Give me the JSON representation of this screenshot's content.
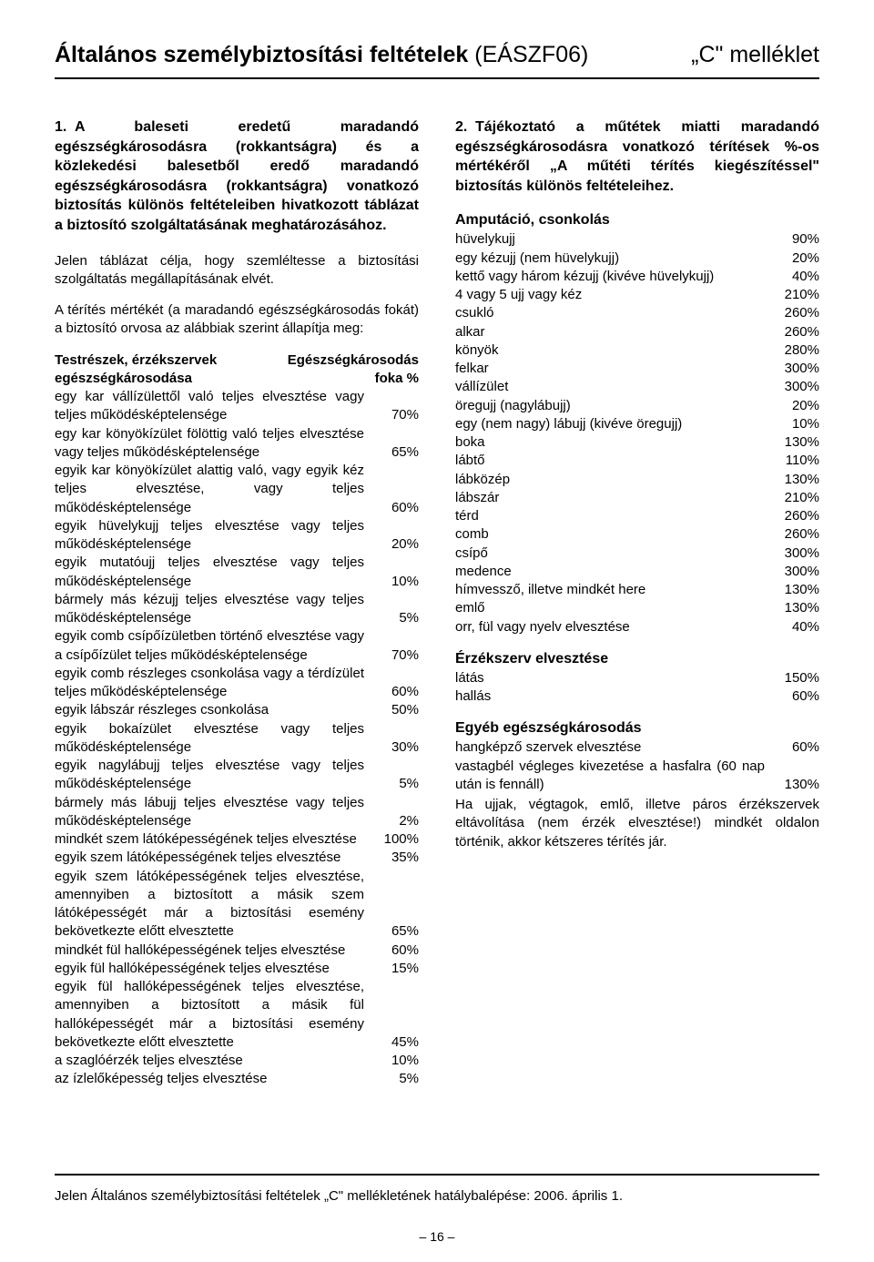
{
  "title": {
    "bold": "Általános személybiztosítási feltételek",
    "code": "(EÁSZF06)",
    "appendix": "„C\" melléklet"
  },
  "section1": {
    "num": "1.",
    "head": "A baleseti eredetű maradandó egészségkárosodásra (rokkantságra) és a közlekedési balesetből eredő maradandó egészségkárosodásra (rokkantságra) vonatkozó biztosítás különös feltételeiben hivatkozott táblázat a biztosító szolgáltatásának meghatározásához.",
    "p1": "Jelen táblázat célja, hogy szemléltesse a biztosítási szolgáltatás megállapításának elvét.",
    "p2": "A térítés mértékét (a maradandó egészségkárosodás fokát) a biztosító orvosa az alábbiak szerint állapítja meg:"
  },
  "table1_head": {
    "left1": "Testrészek, érzékszervek",
    "left2": "egészségkárosodása",
    "right1": "Egészségkárosodás",
    "right2": "foka %"
  },
  "table1": [
    {
      "label": "egy kar vállízülettől való teljes elvesztése vagy teljes működésképtelensége",
      "value": "70%"
    },
    {
      "label": "egy kar könyökízület fölöttig való teljes elvesztése vagy teljes működésképtelensége",
      "value": "65%"
    },
    {
      "label": "egyik kar könyökízület alattig való, vagy egyik kéz teljes elvesztése, vagy teljes működésképtelensége",
      "value": "60%"
    },
    {
      "label": "egyik hüvelykujj teljes elvesztése vagy teljes működésképtelensége",
      "value": "20%"
    },
    {
      "label": "egyik mutatóujj teljes elvesztése vagy teljes működésképtelensége",
      "value": "10%"
    },
    {
      "label": "bármely más kézujj teljes elvesztése vagy teljes működésképtelensége",
      "value": "5%"
    },
    {
      "label": "egyik comb csípőízületben történő elvesztése vagy a csípőízület teljes működésképtelensége",
      "value": "70%"
    },
    {
      "label": "egyik comb részleges csonkolása vagy a térdízület teljes működésképtelensége",
      "value": "60%"
    },
    {
      "label": "egyik lábszár részleges csonkolása",
      "value": "50%"
    },
    {
      "label": "egyik bokaízület elvesztése vagy teljes működésképtelensége",
      "value": "30%"
    },
    {
      "label": "egyik nagylábujj teljes elvesztése vagy teljes működésképtelensége",
      "value": "5%"
    },
    {
      "label": "bármely más lábujj teljes elvesztése vagy teljes működésképtelensége",
      "value": "2%"
    },
    {
      "label": "mindkét szem látóképességének teljes elvesztése",
      "value": "100%"
    },
    {
      "label": "egyik szem látóképességének teljes elvesztése",
      "value": "35%"
    },
    {
      "label": "egyik szem látóképességének teljes elvesztése, amennyiben a biztosított a másik szem látóképességét már a biztosítási esemény bekövetkezte előtt elvesztette",
      "value": "65%"
    },
    {
      "label": "mindkét fül hallóképességének teljes elvesztése",
      "value": "60%"
    },
    {
      "label": "egyik fül hallóképességének teljes elvesztése",
      "value": "15%"
    },
    {
      "label": "egyik fül hallóképességének teljes elvesztése, amennyiben a biztosított a másik fül hallóképességét már a biztosítási esemény bekövetkezte előtt elvesztette",
      "value": "45%"
    },
    {
      "label": "a szaglóérzék teljes elvesztése",
      "value": "10%"
    },
    {
      "label": "az ízlelőképesség teljes elvesztése",
      "value": "5%"
    }
  ],
  "section2": {
    "num": "2.",
    "head": "Tájékoztató a műtétek miatti maradandó egészségkárosodásra vonatkozó térítések %-os mértékéről „A műtéti térítés kiegészítéssel\" biztosítás különös feltételeihez."
  },
  "amput_head": "Amputáció, csonkolás",
  "amput": [
    {
      "label": "hüvelykujj",
      "value": "90%"
    },
    {
      "label": "egy kézujj (nem hüvelykujj)",
      "value": "20%"
    },
    {
      "label": "kettő vagy három kézujj (kivéve hüvelykujj)",
      "value": "40%"
    },
    {
      "label": "4 vagy 5 ujj vagy kéz",
      "value": "210%"
    },
    {
      "label": "csukló",
      "value": "260%"
    },
    {
      "label": "alkar",
      "value": "260%"
    },
    {
      "label": "könyök",
      "value": "280%"
    },
    {
      "label": "felkar",
      "value": "300%"
    },
    {
      "label": "vállízület",
      "value": "300%"
    },
    {
      "label": "öregujj (nagylábujj)",
      "value": "20%"
    },
    {
      "label": "egy (nem nagy) lábujj (kivéve öregujj)",
      "value": "10%"
    },
    {
      "label": "boka",
      "value": "130%"
    },
    {
      "label": "lábtő",
      "value": "110%"
    },
    {
      "label": "lábközép",
      "value": "130%"
    },
    {
      "label": "lábszár",
      "value": "210%"
    },
    {
      "label": "térd",
      "value": "260%"
    },
    {
      "label": "comb",
      "value": "260%"
    },
    {
      "label": "csípő",
      "value": "300%"
    },
    {
      "label": "medence",
      "value": "300%"
    },
    {
      "label": "hímvessző, illetve mindkét here",
      "value": "130%"
    },
    {
      "label": "emlő",
      "value": "130%"
    },
    {
      "label": "orr, fül vagy nyelv elvesztése",
      "value": "40%"
    }
  ],
  "erzek_head": "Érzékszerv elvesztése",
  "erzek": [
    {
      "label": "látás",
      "value": "150%"
    },
    {
      "label": "hallás",
      "value": "60%"
    }
  ],
  "egyeb_head": "Egyéb egészségkárosodás",
  "egyeb": [
    {
      "label": "hangképző szervek elvesztése",
      "value": "60%"
    },
    {
      "label": "vastagbél végleges kivezetése a hasfalra (60 nap után is fennáll)",
      "value": "130%"
    }
  ],
  "egyeb_note": "Ha ujjak, végtagok, emlő, illetve páros érzékszervek eltávolítása (nem érzék elvesztése!) mindkét oldalon történik, akkor kétszeres térítés jár.",
  "footer": "Jelen Általános személybiztosítási feltételek „C\" mellékletének hatálybalépése: 2006. április 1.",
  "pagenum": "– 16 –"
}
